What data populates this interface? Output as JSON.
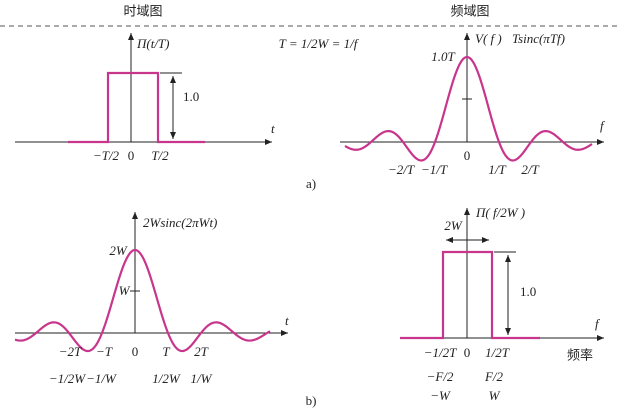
{
  "header": {
    "left": "时域图",
    "right": "频域图"
  },
  "relation": "T = 1/2W = 1/f",
  "panel_a_time": {
    "function": "Π(t/T)",
    "axis": "t",
    "height": "1.0",
    "ticks": [
      "−T/2",
      "0",
      "T/2"
    ]
  },
  "panel_a_freq": {
    "function": "V( f )",
    "formula": "Tsinc(πTf)",
    "axis": "f",
    "peak": "1.0T",
    "ticks": [
      "−2/T",
      "−1/T",
      "0",
      "1/T",
      "2/T"
    ]
  },
  "caption_a": "a)",
  "panel_b_time": {
    "function": "2Wsinc(2πWt)",
    "axis": "t",
    "peak": "2W",
    "half": "W",
    "ticks": [
      "−2T",
      "−T",
      "0",
      "T",
      "2T"
    ],
    "ticks_alt": [
      "−1/2W",
      "−1/W",
      "1/2W",
      "1/W"
    ]
  },
  "panel_b_freq": {
    "function": "Π( f/2W )",
    "width": "2W",
    "axis": "f",
    "height": "1.0",
    "ticks": [
      "−1/2T",
      "0",
      "1/2T"
    ],
    "axis_note": "频率",
    "ticks_f": [
      "−F/2",
      "F/2"
    ],
    "ticks_w": [
      "−W",
      "W"
    ]
  },
  "caption_b": "b)"
}
